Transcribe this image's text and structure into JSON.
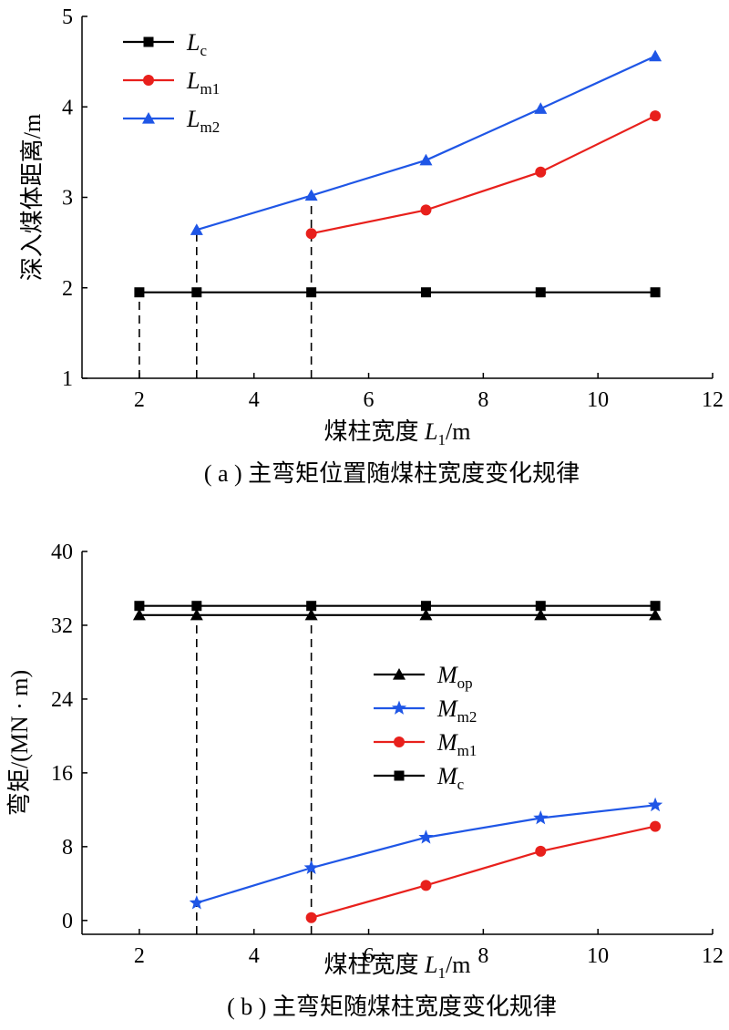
{
  "chart_data": [
    {
      "type": "line",
      "caption": "( a ) 主弯矩位置随煤柱宽度变化规律",
      "xlabel": "煤柱宽度 ",
      "xlabel_var": "L",
      "xlabel_sub": "1",
      "xlabel_unit": "/m",
      "ylabel": "深入煤体距离/m",
      "xlim": [
        1,
        12
      ],
      "ylim": [
        1,
        5
      ],
      "xticks": [
        2,
        4,
        6,
        8,
        10,
        12
      ],
      "yticks": [
        1,
        2,
        3,
        4,
        5
      ],
      "grid": false,
      "legend_position": "top-left",
      "series": [
        {
          "name": "L",
          "sub": "c",
          "color": "#000000",
          "marker": "square",
          "x": [
            2,
            3,
            5,
            7,
            9,
            11
          ],
          "y": [
            1.95,
            1.95,
            1.95,
            1.95,
            1.95,
            1.95
          ]
        },
        {
          "name": "L",
          "sub": "m1",
          "color": "#e8201c",
          "marker": "circle",
          "x": [
            5,
            7,
            9,
            11
          ],
          "y": [
            2.6,
            2.86,
            3.28,
            3.9
          ]
        },
        {
          "name": "L",
          "sub": "m2",
          "color": "#1f56e6",
          "marker": "triangle",
          "x": [
            3,
            5,
            7,
            9,
            11
          ],
          "y": [
            2.64,
            3.02,
            3.41,
            3.98,
            4.56
          ]
        }
      ],
      "dashed_guides": [
        {
          "x": 2,
          "y_to": 1.95
        },
        {
          "x": 3,
          "y_to": 2.64
        },
        {
          "x": 5,
          "y_to": 3.02
        }
      ]
    },
    {
      "type": "line",
      "caption": "( b ) 主弯矩随煤柱宽度变化规律",
      "xlabel": "煤柱宽度 ",
      "xlabel_var": "L",
      "xlabel_sub": "1",
      "xlabel_unit": "/m",
      "ylabel": "弯矩/(MN · m)",
      "xlim": [
        1,
        12
      ],
      "ylim": [
        -1.5,
        40
      ],
      "xticks": [
        2,
        4,
        6,
        8,
        10,
        12
      ],
      "yticks": [
        0,
        8,
        16,
        24,
        32,
        40
      ],
      "grid": false,
      "legend_position": "center",
      "series": [
        {
          "name": "M",
          "sub": "op",
          "color": "#000000",
          "marker": "triangle",
          "x": [
            2,
            3,
            5,
            7,
            9,
            11
          ],
          "y": [
            33.1,
            33.1,
            33.1,
            33.1,
            33.1,
            33.1
          ]
        },
        {
          "name": "M",
          "sub": "m2",
          "color": "#1f56e6",
          "marker": "star",
          "x": [
            3,
            5,
            7,
            9,
            11
          ],
          "y": [
            1.9,
            5.7,
            9.0,
            11.1,
            12.5
          ]
        },
        {
          "name": "M",
          "sub": "m1",
          "color": "#e8201c",
          "marker": "circle",
          "x": [
            5,
            7,
            9,
            11
          ],
          "y": [
            0.3,
            3.8,
            7.5,
            10.2
          ]
        },
        {
          "name": "M",
          "sub": "c",
          "color": "#000000",
          "marker": "square",
          "x": [
            2,
            3,
            5,
            7,
            9,
            11
          ],
          "y": [
            34.1,
            34.1,
            34.1,
            34.1,
            34.1,
            34.1
          ]
        }
      ],
      "dashed_guides": [
        {
          "x": 3,
          "y_to": 33.1
        },
        {
          "x": 5,
          "y_to": 33.1
        }
      ]
    }
  ]
}
